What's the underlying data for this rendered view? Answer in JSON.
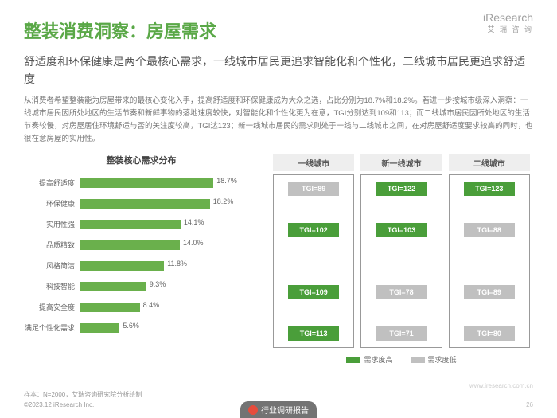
{
  "logo": {
    "brand": "iResearch",
    "sub": "艾 瑞 咨 询"
  },
  "title": "整装消费洞察：房屋需求",
  "subtitle": "舒适度和环保健康是两个最核心需求，一线城市居民更追求智能化和个性化，二线城市居民更追求舒适度",
  "body": "从消费者希望整装能为房屋带来的最核心变化入手，提高舒适度和环保健康成为大众之选，占比分别为18.7%和18.2%。若进一步按城市级深入洞察：一线城市居民因所处地区的生活节奏和新鲜事物的落地速度较快，对智能化和个性化更为在意，TGI分别达到109和113；而二线城市居民因所处地区的生活节奏较慢，对房屋居住环境舒适与否的关注度较高，TGI达123；新一线城市居民的需求则处于一线与二线城市之间，在对房屋舒适度要求较高的同时，也很在意房屋的实用性。",
  "chart": {
    "title": "整装核心需求分布",
    "max_pct": 25,
    "bar_color": "#6ab04c",
    "items": [
      {
        "label": "提高舒适度",
        "value": 18.7,
        "display": "18.7%"
      },
      {
        "label": "环保健康",
        "value": 18.2,
        "display": "18.2%"
      },
      {
        "label": "实用性强",
        "value": 14.1,
        "display": "14.1%"
      },
      {
        "label": "品质精致",
        "value": 14.0,
        "display": "14.0%"
      },
      {
        "label": "风格简洁",
        "value": 11.8,
        "display": "11.8%"
      },
      {
        "label": "科技智能",
        "value": 9.3,
        "display": "9.3%"
      },
      {
        "label": "提高安全度",
        "value": 8.4,
        "display": "8.4%"
      },
      {
        "label": "满足个性化需求",
        "value": 5.6,
        "display": "5.6%"
      }
    ]
  },
  "tgi": {
    "columns": [
      "一线城市",
      "新一线城市",
      "二线城市"
    ],
    "high_color": "#4a9e3a",
    "low_color": "#c0c0c0",
    "rows": [
      [
        {
          "text": "TGI=89",
          "high": false
        },
        {
          "text": "TGI=122",
          "high": true
        },
        {
          "text": "TGI=123",
          "high": true
        }
      ],
      [
        null,
        null,
        null
      ],
      [
        {
          "text": "TGI=102",
          "high": true
        },
        {
          "text": "TGI=103",
          "high": true
        },
        {
          "text": "TGI=88",
          "high": false
        }
      ],
      [
        null,
        null,
        null
      ],
      [
        null,
        null,
        null
      ],
      [
        {
          "text": "TGI=109",
          "high": true
        },
        {
          "text": "TGI=78",
          "high": false
        },
        {
          "text": "TGI=89",
          "high": false
        }
      ],
      [
        null,
        null,
        null
      ],
      [
        {
          "text": "TGI=113",
          "high": true
        },
        {
          "text": "TGI=71",
          "high": false
        },
        {
          "text": "TGI=80",
          "high": false
        }
      ]
    ]
  },
  "legend": {
    "high": "需求度高",
    "low": "需求度低"
  },
  "footer": {
    "sample": "样本：N=2000，艾瑞咨询研究院分析绘制",
    "copy": "©2023.12 iResearch Inc."
  },
  "watermark": "www.iresearch.com.cn",
  "page_num": "26",
  "byline": "行业调研报告"
}
